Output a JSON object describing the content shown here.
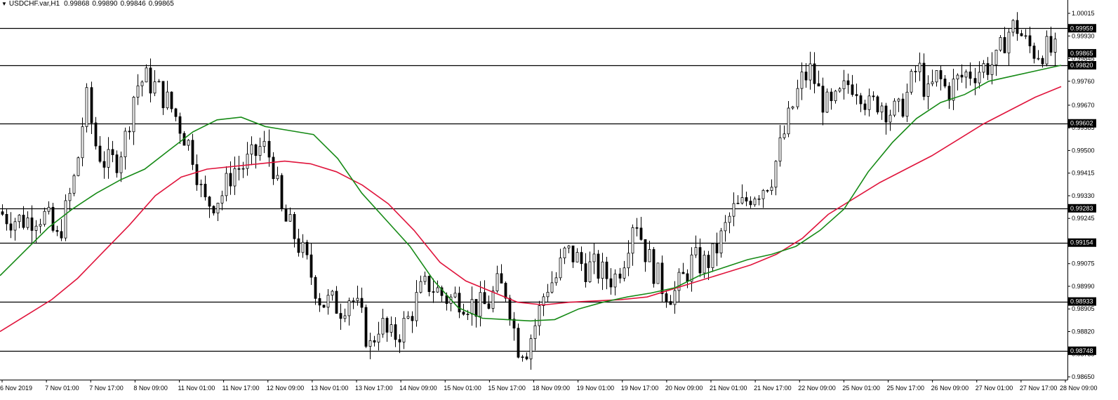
{
  "header": {
    "triangle_icon": "down-triangle-icon",
    "symbol": "USDCHF.var,H1",
    "open": "0.99868",
    "high": "0.99890",
    "low": "0.99846",
    "close": "0.99865"
  },
  "chart_data": {
    "type": "candlestick",
    "ylim": [
      0.9865,
      1.00015
    ],
    "price_ticks": [
      "1.00015",
      "0.99930",
      "0.99845",
      "0.99760",
      "0.99670",
      "0.99585",
      "0.99500",
      "0.99415",
      "0.99330",
      "0.99245",
      "0.99160",
      "0.99075",
      "0.98990",
      "0.98905",
      "0.98820",
      "0.98735",
      "0.98650"
    ],
    "time_labels": [
      "6 Nov 2019",
      "7 Nov 01:00",
      "7 Nov 17:00",
      "8 Nov 09:00",
      "11 Nov 01:00",
      "11 Nov 17:00",
      "12 Nov 09:00",
      "13 Nov 01:00",
      "13 Nov 17:00",
      "14 Nov 09:00",
      "15 Nov 01:00",
      "15 Nov 17:00",
      "18 Nov 09:00",
      "19 Nov 01:00",
      "19 Nov 17:00",
      "20 Nov 09:00",
      "21 Nov 01:00",
      "21 Nov 17:00",
      "22 Nov 09:00",
      "25 Nov 01:00",
      "25 Nov 17:00",
      "26 Nov 09:00",
      "27 Nov 01:00",
      "27 Nov 17:00",
      "28 Nov 09:00"
    ],
    "horizontal_levels": [
      "0.99959",
      "0.99820",
      "0.99602",
      "0.99283",
      "0.99154",
      "0.98933",
      "0.98748"
    ],
    "current_price": "0.99865",
    "ma_fast": [
      0.9903,
      0.9912,
      0.9921,
      0.9928,
      0.9934,
      0.9939,
      0.9943,
      0.995,
      0.9957,
      0.99615,
      0.99625,
      0.9959,
      0.99575,
      0.9956,
      0.9947,
      0.9934,
      0.9924,
      0.9914,
      0.9901,
      0.9891,
      0.9887,
      0.98865,
      0.9886,
      0.98865,
      0.98905,
      0.9893,
      0.9895,
      0.98965,
      0.98985,
      0.9903,
      0.9906,
      0.9909,
      0.9911,
      0.9914,
      0.992,
      0.9928,
      0.9942,
      0.9953,
      0.9962,
      0.9968,
      0.9971,
      0.9976,
      0.9978,
      0.998,
      0.9982
    ],
    "ma_slow": [
      0.9882,
      0.9888,
      0.9894,
      0.9902,
      0.9912,
      0.9922,
      0.9933,
      0.994,
      0.9943,
      0.9944,
      0.9945,
      0.9946,
      0.9945,
      0.9942,
      0.9937,
      0.993,
      0.992,
      0.9908,
      0.9901,
      0.9897,
      0.9893,
      0.9892,
      0.9893,
      0.98935,
      0.9894,
      0.9895,
      0.9898,
      0.9901,
      0.9904,
      0.9907,
      0.9911,
      0.9917,
      0.9926,
      0.9932,
      0.9938,
      0.9943,
      0.9948,
      0.9954,
      0.996,
      0.9965,
      0.997,
      0.9974
    ],
    "close_path": [
      0.9927,
      0.9925,
      0.9924,
      0.9924,
      0.9926,
      0.9925,
      0.9916,
      0.9928,
      0.9942,
      0.997,
      0.9951,
      0.9945,
      0.9946,
      0.9955,
      0.9974,
      0.9977,
      0.9974,
      0.997,
      0.9964,
      0.9956,
      0.9948,
      0.993,
      0.9931,
      0.9934,
      0.9943,
      0.9944,
      0.9947,
      0.9952,
      0.9946,
      0.9925,
      0.992,
      0.9912,
      0.9903,
      0.9893,
      0.9893,
      0.9891,
      0.9896,
      0.9888,
      0.9876,
      0.9886,
      0.9879,
      0.9882,
      0.9887,
      0.9896,
      0.99,
      0.9897,
      0.9894,
      0.9895,
      0.9893,
      0.9891,
      0.9892,
      0.9899,
      0.9897,
      0.9877,
      0.9876,
      0.9886,
      0.9899,
      0.9902,
      0.9912,
      0.991,
      0.9906,
      0.9906,
      0.9903,
      0.9902,
      0.9911,
      0.9927,
      0.9913,
      0.9905,
      0.9898,
      0.9896,
      0.9902,
      0.9909,
      0.9907,
      0.991,
      0.9918,
      0.9927,
      0.9929,
      0.9934,
      0.9936,
      0.994,
      0.9952,
      0.9964,
      0.9976,
      0.998,
      0.997,
      0.9965,
      0.997,
      0.9976,
      0.9974,
      0.9966,
      0.9969,
      0.9965,
      0.9964,
      0.9972,
      0.9982,
      0.997,
      0.9978,
      0.9972,
      0.9976,
      0.9979,
      0.998,
      0.9982,
      0.9983,
      0.9994,
      0.9997,
      0.999,
      0.9987,
      0.9988,
      0.99865
    ]
  }
}
